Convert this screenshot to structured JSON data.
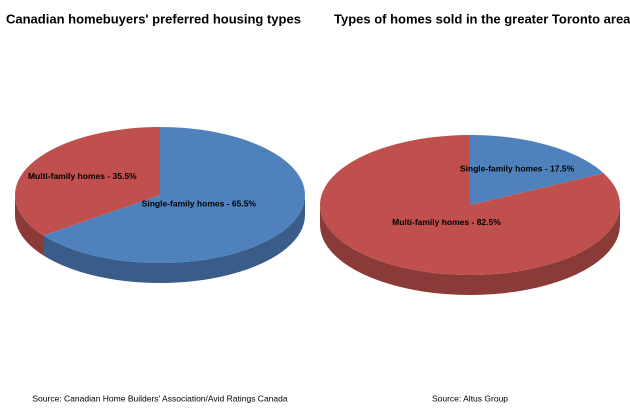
{
  "chart_data": [
    {
      "type": "pie",
      "title": "Canadian homebuyers' preferred housing types",
      "values": [
        65.5,
        35.5
      ],
      "value_labels": [
        "Single-family homes - 65.5%",
        "Multi-family homes - 35.5%"
      ],
      "colors": [
        "#4f81bd",
        "#c0504d"
      ],
      "source": "Source: Canadian Home Builders' Association/Avid Ratings Canada"
    },
    {
      "type": "pie",
      "title": "Types of homes sold in the greater Toronto area",
      "values": [
        17.5,
        82.5
      ],
      "value_labels": [
        "Single-family homes - 17.5%",
        "Multi-family homes - 82.5%"
      ],
      "colors": [
        "#4f81bd",
        "#c0504d"
      ],
      "source": "Source: Altus Group"
    }
  ]
}
